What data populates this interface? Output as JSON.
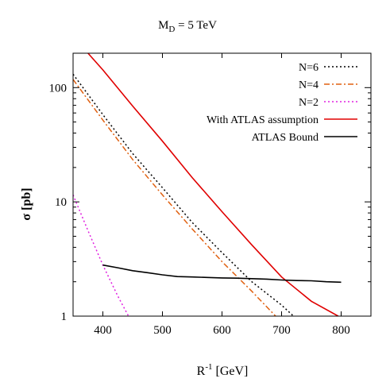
{
  "chart_data": {
    "type": "line",
    "title": "M_D = 5 TeV",
    "title_parts": {
      "main": "M",
      "sub": "D",
      "rest": " = 5 TeV"
    },
    "xlabel": "R^-1 [GeV]",
    "xlabel_parts": {
      "main": "R",
      "sup": "-1",
      "rest": " [GeV]"
    },
    "ylabel": "σ [pb]",
    "xlim": [
      350,
      850
    ],
    "ylim": [
      1,
      200
    ],
    "yscale": "log",
    "grid": false,
    "legend_position": "top-right",
    "x_ticks": [
      400,
      500,
      600,
      700,
      800
    ],
    "y_ticks": [
      {
        "value": 1,
        "label": "1"
      },
      {
        "value": 10,
        "label": "10"
      },
      {
        "value": 100,
        "label": "100"
      }
    ],
    "series": [
      {
        "name": "N=6",
        "color": "#000000",
        "style": "dotted",
        "x": [
          350,
          400,
          450,
          500,
          550,
          600,
          650,
          700,
          720
        ],
        "y": [
          131,
          58,
          26.5,
          13.3,
          6.6,
          3.6,
          2.0,
          1.25,
          1.0
        ]
      },
      {
        "name": "N=4",
        "color": "#e06010",
        "style": "dashdot",
        "x": [
          350,
          400,
          450,
          500,
          550,
          600,
          650,
          690
        ],
        "y": [
          118,
          52,
          23.5,
          11.5,
          5.8,
          3.0,
          1.65,
          1.0
        ]
      },
      {
        "name": "N=2",
        "color": "#e020e0",
        "style": "dotted",
        "x": [
          350,
          375,
          400,
          425,
          443
        ],
        "y": [
          11.5,
          5.6,
          2.8,
          1.5,
          1.0
        ]
      },
      {
        "name": "With ATLAS assumption",
        "color": "#e00000",
        "style": "solid",
        "x": [
          375,
          400,
          450,
          500,
          550,
          600,
          650,
          700,
          750,
          795
        ],
        "y": [
          200,
          143,
          69,
          34,
          16.3,
          8.2,
          4.2,
          2.2,
          1.35,
          1.0
        ]
      },
      {
        "name": "ATLAS Bound",
        "color": "#000000",
        "style": "solid",
        "x": [
          400,
          425,
          450,
          475,
          500,
          525,
          550,
          575,
          600,
          625,
          650,
          675,
          700,
          725,
          750,
          775,
          800
        ],
        "y": [
          2.8,
          2.65,
          2.5,
          2.4,
          2.3,
          2.22,
          2.2,
          2.18,
          2.16,
          2.15,
          2.13,
          2.11,
          2.07,
          2.05,
          2.04,
          2.0,
          1.98
        ]
      }
    ]
  }
}
